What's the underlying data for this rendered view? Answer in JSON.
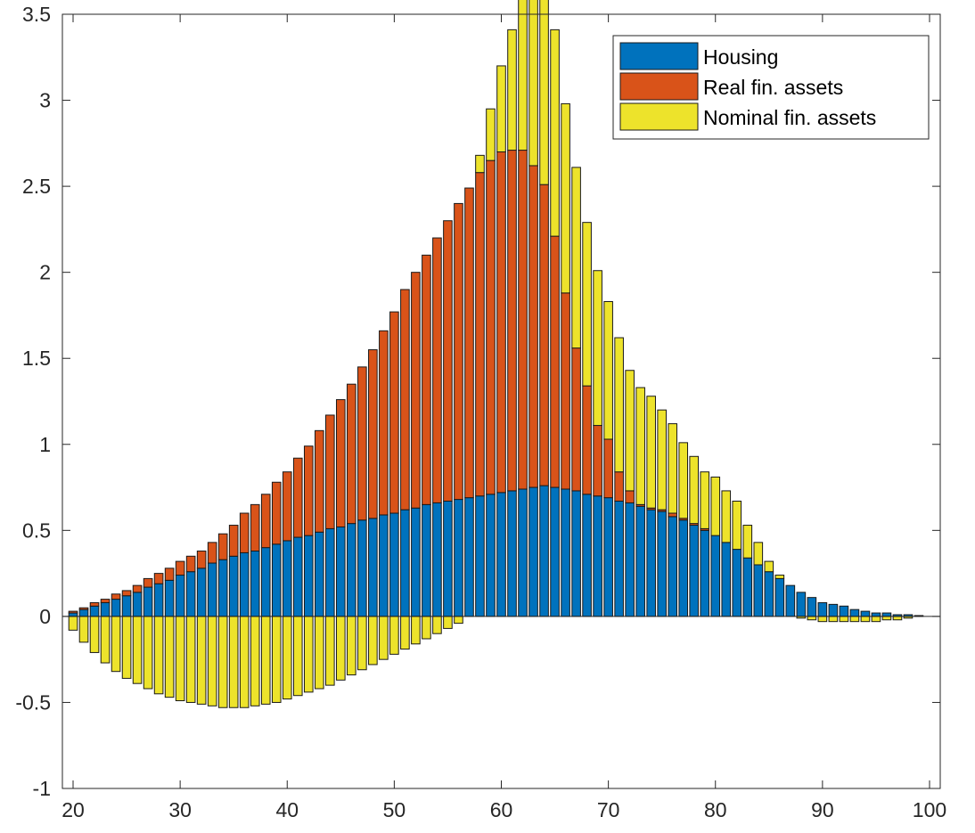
{
  "chart_data": {
    "type": "bar",
    "stacked": true,
    "title": "",
    "xlabel": "",
    "ylabel": "",
    "xlim": [
      19,
      101
    ],
    "ylim": [
      -1,
      3.5
    ],
    "x_ticks": [
      20,
      30,
      40,
      50,
      60,
      70,
      80,
      90,
      100
    ],
    "x_tick_labels": [
      "20",
      "30",
      "40",
      "50",
      "60",
      "70",
      "80",
      "90",
      "100"
    ],
    "y_ticks": [
      -1,
      -0.5,
      0,
      0.5,
      1,
      1.5,
      2,
      2.5,
      3,
      3.5
    ],
    "y_tick_labels": [
      "-1",
      "-0.5",
      "0",
      "0.5",
      "1",
      "1.5",
      "2",
      "2.5",
      "3",
      "3.5"
    ],
    "grid": false,
    "legend_position": "top-right",
    "x": [
      20,
      21,
      22,
      23,
      24,
      25,
      26,
      27,
      28,
      29,
      30,
      31,
      32,
      33,
      34,
      35,
      36,
      37,
      38,
      39,
      40,
      41,
      42,
      43,
      44,
      45,
      46,
      47,
      48,
      49,
      50,
      51,
      52,
      53,
      54,
      55,
      56,
      57,
      58,
      59,
      60,
      61,
      62,
      63,
      64,
      65,
      66,
      67,
      68,
      69,
      70,
      71,
      72,
      73,
      74,
      75,
      76,
      77,
      78,
      79,
      80,
      81,
      82,
      83,
      84,
      85,
      86,
      87,
      88,
      89,
      90,
      91,
      92,
      93,
      94,
      95,
      96,
      97,
      98,
      99
    ],
    "series": [
      {
        "name": "Housing",
        "color": "#0072BD",
        "values": [
          0.02,
          0.04,
          0.06,
          0.08,
          0.1,
          0.12,
          0.14,
          0.17,
          0.19,
          0.21,
          0.24,
          0.26,
          0.28,
          0.31,
          0.33,
          0.35,
          0.37,
          0.38,
          0.4,
          0.42,
          0.44,
          0.46,
          0.47,
          0.49,
          0.51,
          0.52,
          0.54,
          0.56,
          0.57,
          0.59,
          0.6,
          0.62,
          0.63,
          0.65,
          0.66,
          0.67,
          0.68,
          0.69,
          0.7,
          0.71,
          0.72,
          0.73,
          0.74,
          0.75,
          0.76,
          0.75,
          0.74,
          0.73,
          0.71,
          0.7,
          0.69,
          0.67,
          0.66,
          0.64,
          0.62,
          0.61,
          0.58,
          0.56,
          0.53,
          0.5,
          0.47,
          0.43,
          0.39,
          0.34,
          0.3,
          0.26,
          0.22,
          0.18,
          0.14,
          0.11,
          0.08,
          0.07,
          0.06,
          0.04,
          0.03,
          0.02,
          0.02,
          0.01,
          0.01,
          0.005
        ]
      },
      {
        "name": "Real fin. assets",
        "color": "#D95319",
        "values": [
          0.01,
          0.01,
          0.02,
          0.02,
          0.03,
          0.03,
          0.04,
          0.05,
          0.06,
          0.07,
          0.08,
          0.09,
          0.1,
          0.12,
          0.15,
          0.18,
          0.23,
          0.27,
          0.31,
          0.36,
          0.4,
          0.46,
          0.52,
          0.59,
          0.66,
          0.74,
          0.81,
          0.89,
          0.98,
          1.07,
          1.17,
          1.28,
          1.37,
          1.45,
          1.54,
          1.63,
          1.72,
          1.8,
          1.88,
          1.94,
          1.98,
          1.98,
          1.97,
          1.87,
          1.75,
          1.46,
          1.14,
          0.83,
          0.63,
          0.41,
          0.34,
          0.17,
          0.07,
          0.01,
          0.01,
          0.01,
          0.02,
          0.01,
          0.01,
          0.01,
          0,
          0,
          0,
          0,
          0,
          0,
          0,
          0,
          0,
          0,
          0,
          0,
          0,
          0,
          0,
          0,
          0,
          0,
          0,
          0
        ]
      },
      {
        "name": "Nominal fin. assets",
        "color": "#EDE32B",
        "values": [
          -0.08,
          -0.15,
          -0.21,
          -0.27,
          -0.32,
          -0.36,
          -0.39,
          -0.42,
          -0.45,
          -0.47,
          -0.49,
          -0.5,
          -0.51,
          -0.52,
          -0.53,
          -0.53,
          -0.53,
          -0.52,
          -0.51,
          -0.5,
          -0.48,
          -0.46,
          -0.44,
          -0.42,
          -0.4,
          -0.37,
          -0.34,
          -0.31,
          -0.28,
          -0.25,
          -0.22,
          -0.19,
          -0.16,
          -0.13,
          -0.1,
          -0.07,
          -0.04,
          0,
          0.1,
          0.3,
          0.5,
          0.7,
          0.9,
          1.1,
          1.15,
          1.2,
          1.1,
          1.05,
          0.95,
          0.9,
          0.8,
          0.78,
          0.7,
          0.68,
          0.65,
          0.58,
          0.52,
          0.44,
          0.39,
          0.33,
          0.34,
          0.3,
          0.28,
          0.19,
          0.13,
          0.06,
          0.02,
          0,
          -0.01,
          -0.02,
          -0.03,
          -0.03,
          -0.03,
          -0.03,
          -0.03,
          -0.03,
          -0.02,
          -0.02,
          -0.01,
          0
        ]
      }
    ]
  }
}
